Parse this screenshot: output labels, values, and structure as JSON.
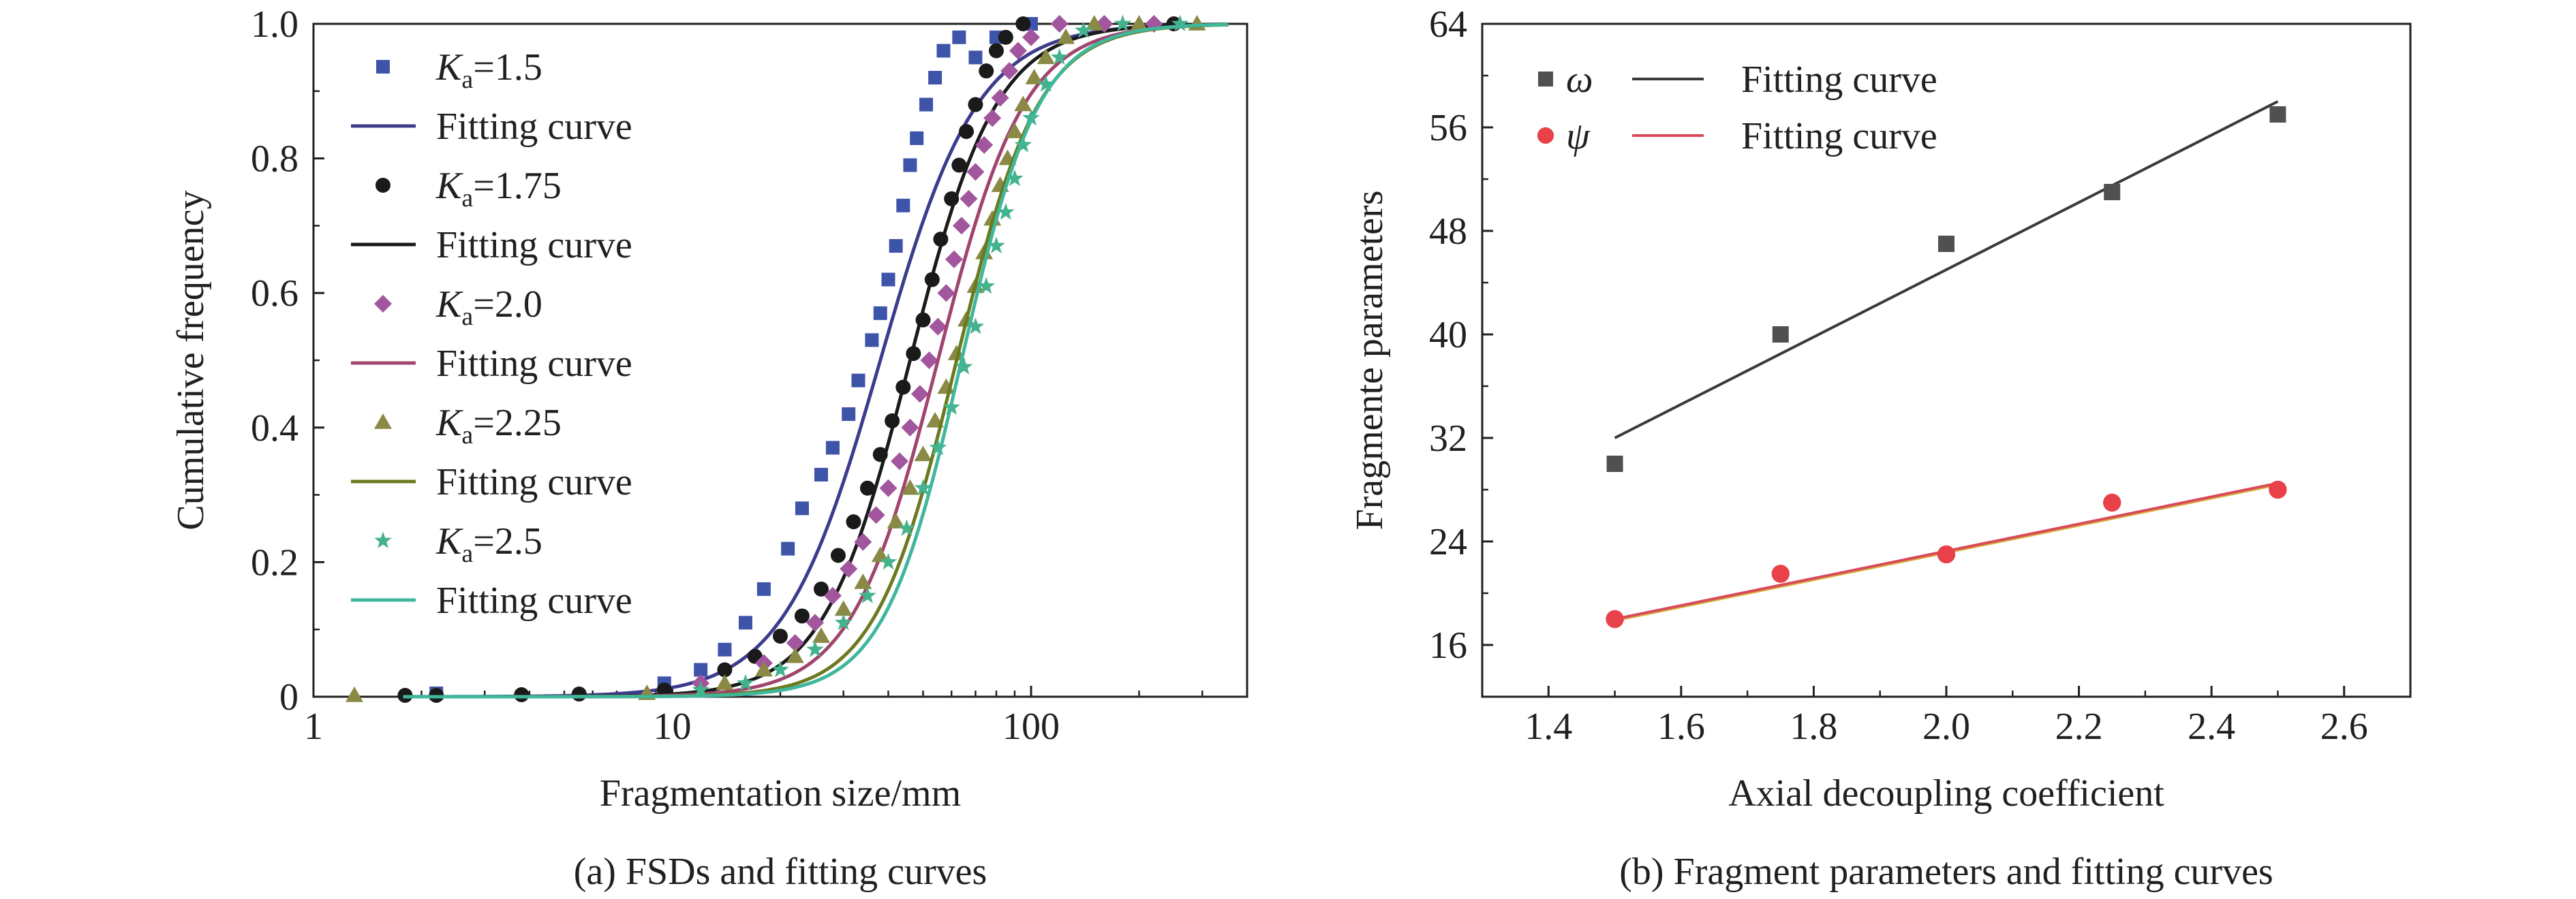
{
  "colors": {
    "axis": "#231f20",
    "ka15": "#3e54a8",
    "ka15_fit": "#3c3c8c",
    "ka175": "#1a1a1a",
    "ka20": "#a2569e",
    "ka20_fit": "#a0456e",
    "ka225": "#8a8a46",
    "ka225_fit": "#6b7a1e",
    "ka25": "#44b28c",
    "ka25_fit": "#3fb79b",
    "omega": "#505050",
    "omega_fit": "#3a3a3a",
    "psi": "#e8414a",
    "psi_fit": "#d84a5a",
    "psi_fit_alt": "#d6b33a"
  },
  "chart_data": [
    {
      "type": "scatter",
      "caption": "(a) FSDs and fitting curves",
      "xlabel": "Fragmentation size/mm",
      "ylabel": "Cumulative frequency",
      "xscale": "log",
      "xlim": [
        1,
        400
      ],
      "ylim": [
        0,
        1.0
      ],
      "xticks": [
        1,
        10,
        100
      ],
      "yticks": [
        0,
        0.2,
        0.4,
        0.6,
        0.8,
        1.0
      ],
      "yticklabels": [
        "0",
        "0.2",
        "0.4",
        "0.6",
        "0.8",
        "1.0"
      ],
      "legend_position": "top-left",
      "series": [
        {
          "name_prefix": "K",
          "name_sub": "a",
          "name_suffix": "=1.5",
          "kind": "points",
          "marker": "square",
          "color_key": "ka15",
          "x": [
            2.2,
            9.5,
            12,
            14,
            16,
            18,
            21,
            23,
            26,
            28,
            31,
            33,
            36,
            38,
            40,
            42,
            44,
            46,
            48,
            51,
            54,
            57,
            63,
            70,
            80,
            100
          ],
          "y": [
            0.005,
            0.02,
            0.04,
            0.07,
            0.11,
            0.16,
            0.22,
            0.28,
            0.33,
            0.37,
            0.42,
            0.47,
            0.53,
            0.57,
            0.62,
            0.67,
            0.73,
            0.79,
            0.83,
            0.88,
            0.92,
            0.96,
            0.98,
            0.95,
            0.98,
            1.0
          ]
        },
        {
          "name": "Fitting curve",
          "kind": "line",
          "color_key": "ka15_fit",
          "x50": 38,
          "n": 3.2
        },
        {
          "name_prefix": "K",
          "name_sub": "a",
          "name_suffix": "=1.75",
          "kind": "points",
          "marker": "circle",
          "color_key": "ka175",
          "x": [
            1.8,
            2.2,
            3.8,
            5.5,
            9.5,
            14,
            17,
            20,
            23,
            26,
            29,
            32,
            35,
            38,
            41,
            44,
            47,
            50,
            53,
            56,
            60,
            63,
            66,
            70,
            75,
            80,
            85,
            95,
            250
          ],
          "y": [
            0.002,
            0.002,
            0.003,
            0.004,
            0.01,
            0.04,
            0.06,
            0.09,
            0.12,
            0.16,
            0.21,
            0.26,
            0.31,
            0.36,
            0.41,
            0.46,
            0.51,
            0.56,
            0.62,
            0.68,
            0.74,
            0.79,
            0.84,
            0.88,
            0.93,
            0.96,
            0.98,
            1.0,
            1.0
          ]
        },
        {
          "name": "Fitting curve",
          "kind": "line",
          "color_key": "ka175",
          "x50": 46,
          "n": 3.6
        },
        {
          "name_prefix": "K",
          "name_sub": "a",
          "name_suffix": "=2.0",
          "kind": "points",
          "marker": "diamond",
          "color_key": "ka20",
          "x": [
            12,
            18,
            22,
            25,
            28,
            31,
            34,
            37,
            40,
            43,
            46,
            49,
            52,
            55,
            58,
            61,
            64,
            67,
            70,
            74,
            78,
            82,
            87,
            92,
            100,
            120,
            160,
            220
          ],
          "y": [
            0.02,
            0.05,
            0.08,
            0.11,
            0.15,
            0.19,
            0.23,
            0.27,
            0.31,
            0.35,
            0.4,
            0.45,
            0.5,
            0.55,
            0.6,
            0.65,
            0.7,
            0.74,
            0.78,
            0.82,
            0.86,
            0.89,
            0.93,
            0.96,
            0.98,
            1.0,
            1.0,
            1.0
          ]
        },
        {
          "name": "Fitting curve",
          "kind": "line",
          "color_key": "ka20_fit",
          "x50": 55,
          "n": 3.6
        },
        {
          "name_prefix": "K",
          "name_sub": "a",
          "name_suffix": "=2.25",
          "kind": "points",
          "marker": "triangle",
          "color_key": "ka225",
          "x": [
            1.3,
            8.5,
            14,
            18,
            22,
            26,
            30,
            34,
            38,
            42,
            46,
            50,
            54,
            58,
            62,
            66,
            70,
            74,
            78,
            82,
            86,
            90,
            95,
            102,
            110,
            125,
            150,
            200,
            290
          ],
          "y": [
            0.002,
            0.005,
            0.02,
            0.04,
            0.06,
            0.09,
            0.13,
            0.17,
            0.21,
            0.26,
            0.31,
            0.36,
            0.41,
            0.46,
            0.51,
            0.56,
            0.61,
            0.66,
            0.71,
            0.76,
            0.8,
            0.84,
            0.88,
            0.92,
            0.95,
            0.98,
            1.0,
            1.0,
            1.0
          ]
        },
        {
          "name": "Fitting curve",
          "kind": "line",
          "color_key": "ka225_fit",
          "x50": 62,
          "n": 3.8
        },
        {
          "name_prefix": "K",
          "name_sub": "a",
          "name_suffix": "=2.5",
          "kind": "points",
          "marker": "star",
          "color_key": "ka25",
          "x": [
            12,
            16,
            20,
            25,
            30,
            35,
            40,
            45,
            50,
            55,
            60,
            65,
            70,
            75,
            80,
            85,
            90,
            95,
            100,
            110,
            120,
            140,
            180,
            260
          ],
          "y": [
            0.01,
            0.02,
            0.04,
            0.07,
            0.11,
            0.15,
            0.2,
            0.25,
            0.31,
            0.37,
            0.43,
            0.49,
            0.55,
            0.61,
            0.67,
            0.72,
            0.77,
            0.82,
            0.86,
            0.91,
            0.95,
            0.99,
            1.0,
            1.0
          ]
        },
        {
          "name": "Fitting curve",
          "kind": "line",
          "color_key": "ka25_fit",
          "x50": 64,
          "n": 4.0
        }
      ]
    },
    {
      "type": "scatter",
      "caption": "(b) Fragment parameters and fitting curves",
      "xlabel": "Axial decoupling coefficient",
      "ylabel": "Fragmente parameters",
      "xlim": [
        1.3,
        2.7
      ],
      "ylim": [
        12,
        64
      ],
      "xticks": [
        1.4,
        1.6,
        1.8,
        2.0,
        2.2,
        2.4,
        2.6
      ],
      "xticklabels": [
        "1.4",
        "1.6",
        "1.8",
        "2.0",
        "2.2",
        "2.4",
        "2.6"
      ],
      "yticks": [
        16,
        24,
        32,
        40,
        48,
        56,
        64
      ],
      "yticklabels": [
        "16",
        "24",
        "32",
        "40",
        "48",
        "56",
        "64"
      ],
      "legend_position": "top-left",
      "series": [
        {
          "name": "ω",
          "kind": "points",
          "marker": "square",
          "color_key": "omega",
          "x": [
            1.5,
            1.75,
            2.0,
            2.25,
            2.5
          ],
          "y": [
            30,
            40,
            47,
            51,
            57
          ]
        },
        {
          "name": "Fitting curve",
          "kind": "line",
          "color_key": "omega_fit",
          "x": [
            1.5,
            2.5
          ],
          "y": [
            32,
            58
          ]
        },
        {
          "name": "ψ",
          "kind": "points",
          "marker": "circle",
          "color_key": "psi",
          "x": [
            1.5,
            1.75,
            2.0,
            2.25,
            2.5
          ],
          "y": [
            18,
            21.5,
            23,
            27,
            28
          ]
        },
        {
          "name": "Fitting curve",
          "kind": "line",
          "color_key": "psi_fit",
          "x": [
            1.5,
            2.5
          ],
          "y": [
            18,
            28.5
          ]
        }
      ]
    }
  ]
}
